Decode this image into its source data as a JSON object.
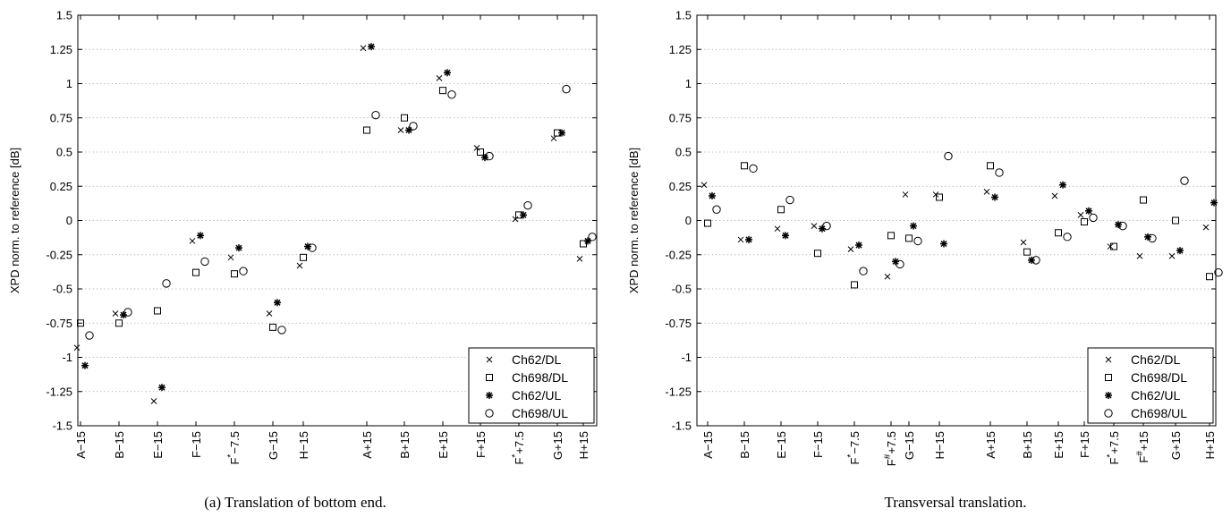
{
  "chart_data": [
    {
      "type": "scatter",
      "caption": "(a) Translation of bottom end.",
      "ylabel": "XPD norm. to reference [dB]",
      "ylim": [
        -1.5,
        1.5
      ],
      "yticks": [
        -1.5,
        -1.25,
        -1,
        -0.75,
        -0.5,
        -0.25,
        0,
        0.25,
        0.5,
        0.75,
        1,
        1.25,
        1.5
      ],
      "ytick_labels": [
        "-1.5",
        "-1.25",
        "-1",
        "-0.75",
        "-0.5",
        "-0.25",
        "0",
        "0.25",
        "0.5",
        "0.75",
        "1",
        "1.25",
        "1.5"
      ],
      "grid": true,
      "legend_position": "bottom-right",
      "categories": [
        "A-15",
        "B-15",
        "E-15",
        "F-15",
        "F*-7.5",
        "G-15",
        "H-15",
        "A+15",
        "B+15",
        "E+15",
        "F+15",
        "F*+7.5",
        "G+15",
        "H+15"
      ],
      "category_labels": [
        {
          "base": "A−15",
          "sup": ""
        },
        {
          "base": "B−15",
          "sup": ""
        },
        {
          "base": "E−15",
          "sup": ""
        },
        {
          "base": "F−15",
          "sup": ""
        },
        {
          "base": "F",
          "sup": "*",
          "rest": "−7.5"
        },
        {
          "base": "G−15",
          "sup": ""
        },
        {
          "base": "H−15",
          "sup": ""
        },
        {
          "base": "A+15",
          "sup": ""
        },
        {
          "base": "B+15",
          "sup": ""
        },
        {
          "base": "E+15",
          "sup": ""
        },
        {
          "base": "F+15",
          "sup": ""
        },
        {
          "base": "F",
          "sup": "*",
          "rest": "+7.5"
        },
        {
          "base": "G+15",
          "sup": ""
        },
        {
          "base": "H+15",
          "sup": ""
        }
      ],
      "series": [
        {
          "name": "Ch62/DL",
          "marker": "x",
          "values": [
            -0.93,
            -0.68,
            -1.32,
            -0.15,
            -0.27,
            -0.68,
            -0.33,
            1.26,
            0.66,
            1.04,
            0.53,
            0.01,
            0.6,
            -0.28
          ]
        },
        {
          "name": "Ch698/DL",
          "marker": "square",
          "values": [
            -0.75,
            -0.75,
            -0.66,
            -0.38,
            -0.39,
            -0.78,
            -0.27,
            0.66,
            0.75,
            0.95,
            0.5,
            0.04,
            0.64,
            -0.17
          ]
        },
        {
          "name": "Ch62/UL",
          "marker": "star",
          "values": [
            -1.06,
            -0.69,
            -1.22,
            -0.11,
            -0.2,
            -0.6,
            -0.19,
            1.27,
            0.66,
            1.08,
            0.46,
            0.04,
            0.64,
            -0.15
          ]
        },
        {
          "name": "Ch698/UL",
          "marker": "circle",
          "values": [
            -0.84,
            -0.67,
            -0.46,
            -0.3,
            -0.37,
            -0.8,
            -0.2,
            0.77,
            0.69,
            0.92,
            0.47,
            0.11,
            0.96,
            -0.12
          ]
        }
      ]
    },
    {
      "type": "scatter",
      "caption": "Transversal translation.",
      "ylabel": "XPD norm. to reference [dB]",
      "ylim": [
        -1.5,
        1.5
      ],
      "yticks": [
        -1.5,
        -1.25,
        -1,
        -0.75,
        -0.5,
        -0.25,
        0,
        0.25,
        0.5,
        0.75,
        1,
        1.25,
        1.5
      ],
      "ytick_labels": [
        "-1.5",
        "-1.25",
        "-1",
        "-0.75",
        "-0.5",
        "-0.25",
        "0",
        "0.25",
        "0.5",
        "0.75",
        "1",
        "1.25",
        "1.5"
      ],
      "grid": true,
      "legend_position": "bottom-right",
      "categories": [
        "A-15",
        "B-15",
        "E-15",
        "F-15",
        "F*-7.5",
        "F#+7.5",
        "G-15",
        "H-15",
        "A+15",
        "B+15",
        "E+15",
        "F+15",
        "F*+7.5",
        "F#+15",
        "G+15",
        "H+15"
      ],
      "category_labels": [
        {
          "base": "A−15",
          "sup": ""
        },
        {
          "base": "B−15",
          "sup": ""
        },
        {
          "base": "E−15",
          "sup": ""
        },
        {
          "base": "F−15",
          "sup": ""
        },
        {
          "base": "F",
          "sup": "*",
          "rest": "−7.5"
        },
        {
          "base": "F",
          "sup": "#",
          "rest": "+7.5"
        },
        {
          "base": "G−15",
          "sup": ""
        },
        {
          "base": "H−15",
          "sup": ""
        },
        {
          "base": "A+15",
          "sup": ""
        },
        {
          "base": "B+15",
          "sup": ""
        },
        {
          "base": "E+15",
          "sup": ""
        },
        {
          "base": "F+15",
          "sup": ""
        },
        {
          "base": "F",
          "sup": "*",
          "rest": "+7.5"
        },
        {
          "base": "F",
          "sup": "#",
          "rest": "+15"
        },
        {
          "base": "G+15",
          "sup": ""
        },
        {
          "base": "H+15",
          "sup": ""
        }
      ],
      "series": [
        {
          "name": "Ch62/DL",
          "marker": "x",
          "values": [
            0.26,
            -0.14,
            -0.06,
            -0.04,
            -0.21,
            -0.41,
            0.19,
            0.19,
            0.21,
            -0.16,
            0.18,
            0.04,
            -0.19,
            -0.26,
            -0.26,
            -0.05
          ]
        },
        {
          "name": "Ch698/DL",
          "marker": "square",
          "values": [
            -0.02,
            0.4,
            0.08,
            -0.24,
            -0.47,
            -0.11,
            -0.13,
            0.17,
            0.4,
            -0.23,
            -0.09,
            -0.01,
            -0.19,
            0.15,
            0.0,
            -0.41
          ]
        },
        {
          "name": "Ch62/UL",
          "marker": "star",
          "values": [
            0.18,
            -0.14,
            -0.11,
            -0.06,
            -0.18,
            -0.3,
            -0.04,
            -0.17,
            0.17,
            -0.29,
            0.26,
            0.07,
            -0.03,
            -0.12,
            -0.22,
            0.13
          ]
        },
        {
          "name": "Ch698/UL",
          "marker": "circle",
          "values": [
            0.08,
            0.38,
            0.15,
            -0.04,
            -0.37,
            -0.32,
            -0.15,
            0.47,
            0.35,
            -0.29,
            -0.12,
            0.02,
            -0.04,
            -0.13,
            0.29,
            -0.38
          ]
        }
      ]
    }
  ]
}
